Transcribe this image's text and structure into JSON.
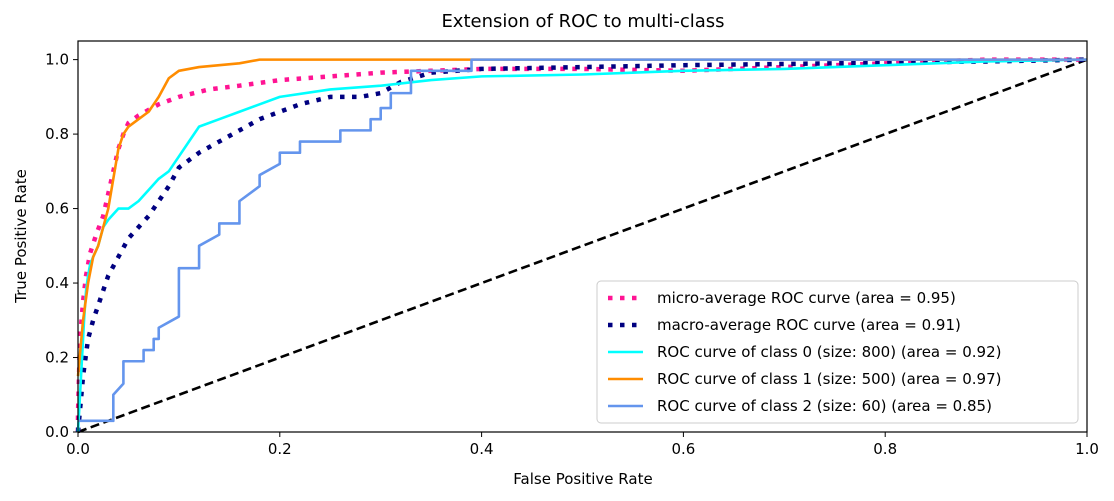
{
  "chart_data": {
    "type": "line",
    "title": "Extension of ROC to multi-class",
    "xlabel": "False Positive Rate",
    "ylabel": "True Positive Rate",
    "xlim": [
      0.0,
      1.0
    ],
    "ylim": [
      0.0,
      1.05
    ],
    "xticks": [
      "0.0",
      "0.2",
      "0.4",
      "0.6",
      "0.8",
      "1.0"
    ],
    "yticks": [
      "0.0",
      "0.2",
      "0.4",
      "0.6",
      "0.8",
      "1.0"
    ],
    "grid": false,
    "legend_position": "lower-right",
    "series": [
      {
        "name": "micro-average ROC curve (area = 0.95)",
        "color": "#ff1493",
        "style": "dotted",
        "x": [
          0,
          0,
          0.002,
          0.005,
          0.008,
          0.012,
          0.018,
          0.025,
          0.03,
          0.035,
          0.04,
          0.045,
          0.05,
          0.06,
          0.08,
          0.1,
          0.13,
          0.16,
          0.2,
          0.25,
          0.3,
          0.35,
          0.4,
          0.5,
          0.6,
          0.7,
          0.8,
          0.9,
          1.0
        ],
        "y": [
          0,
          0.05,
          0.25,
          0.35,
          0.42,
          0.48,
          0.53,
          0.58,
          0.64,
          0.7,
          0.76,
          0.8,
          0.83,
          0.85,
          0.88,
          0.9,
          0.92,
          0.93,
          0.945,
          0.955,
          0.965,
          0.97,
          0.975,
          0.975,
          0.97,
          0.98,
          0.99,
          1.0,
          1.0
        ]
      },
      {
        "name": "macro-average ROC curve (area = 0.91)",
        "color": "#000080",
        "style": "dotted",
        "x": [
          0,
          0.005,
          0.01,
          0.015,
          0.02,
          0.03,
          0.04,
          0.05,
          0.06,
          0.07,
          0.08,
          0.09,
          0.1,
          0.12,
          0.14,
          0.16,
          0.18,
          0.2,
          0.22,
          0.25,
          0.28,
          0.3,
          0.32,
          0.35,
          0.4,
          0.5,
          0.6,
          0.75,
          0.9,
          1.0
        ],
        "y": [
          0,
          0.15,
          0.25,
          0.3,
          0.34,
          0.42,
          0.47,
          0.52,
          0.55,
          0.58,
          0.62,
          0.66,
          0.71,
          0.75,
          0.78,
          0.81,
          0.84,
          0.86,
          0.88,
          0.9,
          0.9,
          0.91,
          0.94,
          0.965,
          0.975,
          0.98,
          0.985,
          0.99,
          0.995,
          1.0
        ]
      },
      {
        "name": "ROC curve of class 0 (size: 800) (area = 0.92)",
        "color": "#00ffff",
        "style": "solid",
        "x": [
          0,
          0.002,
          0.004,
          0.006,
          0.008,
          0.01,
          0.012,
          0.015,
          0.02,
          0.025,
          0.03,
          0.04,
          0.05,
          0.06,
          0.07,
          0.08,
          0.09,
          0.1,
          0.11,
          0.12,
          0.14,
          0.16,
          0.18,
          0.2,
          0.25,
          0.3,
          0.35,
          0.4,
          0.5,
          0.6,
          0.7,
          0.8,
          0.9,
          1.0
        ],
        "y": [
          0,
          0.1,
          0.2,
          0.3,
          0.38,
          0.42,
          0.45,
          0.47,
          0.5,
          0.55,
          0.57,
          0.6,
          0.6,
          0.62,
          0.65,
          0.68,
          0.7,
          0.74,
          0.78,
          0.82,
          0.84,
          0.86,
          0.88,
          0.9,
          0.92,
          0.93,
          0.945,
          0.955,
          0.96,
          0.97,
          0.975,
          0.985,
          0.995,
          1.0
        ]
      },
      {
        "name": "ROC curve of class 1 (size: 500) (area = 0.97)",
        "color": "#ff8c00",
        "style": "solid",
        "x": [
          0,
          0.005,
          0.01,
          0.015,
          0.02,
          0.025,
          0.03,
          0.035,
          0.04,
          0.045,
          0.05,
          0.06,
          0.07,
          0.075,
          0.08,
          0.09,
          0.1,
          0.12,
          0.14,
          0.16,
          0.18,
          0.25,
          0.4,
          0.6,
          1.0
        ],
        "y": [
          0.15,
          0.3,
          0.4,
          0.47,
          0.5,
          0.55,
          0.6,
          0.68,
          0.76,
          0.8,
          0.82,
          0.84,
          0.86,
          0.88,
          0.9,
          0.95,
          0.97,
          0.98,
          0.985,
          0.99,
          1.0,
          1.0,
          1.0,
          1.0,
          1.0
        ]
      },
      {
        "name": "ROC curve of class 2 (size: 60) (area = 0.85)",
        "color": "#6495ed",
        "style": "solid",
        "x": [
          0,
          0.035,
          0.035,
          0.045,
          0.045,
          0.065,
          0.065,
          0.075,
          0.075,
          0.08,
          0.08,
          0.1,
          0.1,
          0.12,
          0.12,
          0.14,
          0.14,
          0.16,
          0.16,
          0.18,
          0.18,
          0.2,
          0.2,
          0.22,
          0.22,
          0.26,
          0.26,
          0.29,
          0.29,
          0.3,
          0.3,
          0.31,
          0.31,
          0.33,
          0.33,
          0.345,
          0.345,
          0.39,
          0.39,
          0.6,
          1.0
        ],
        "y": [
          0.03,
          0.03,
          0.1,
          0.13,
          0.19,
          0.19,
          0.22,
          0.22,
          0.25,
          0.25,
          0.28,
          0.31,
          0.44,
          0.44,
          0.5,
          0.53,
          0.56,
          0.56,
          0.62,
          0.66,
          0.69,
          0.72,
          0.75,
          0.75,
          0.78,
          0.78,
          0.81,
          0.81,
          0.84,
          0.84,
          0.87,
          0.87,
          0.91,
          0.91,
          0.97,
          0.97,
          0.97,
          0.97,
          1.0,
          1.0,
          1.0
        ]
      },
      {
        "name": "",
        "color": "#000000",
        "style": "dashed",
        "x": [
          0,
          1
        ],
        "y": [
          0,
          1
        ]
      }
    ]
  }
}
